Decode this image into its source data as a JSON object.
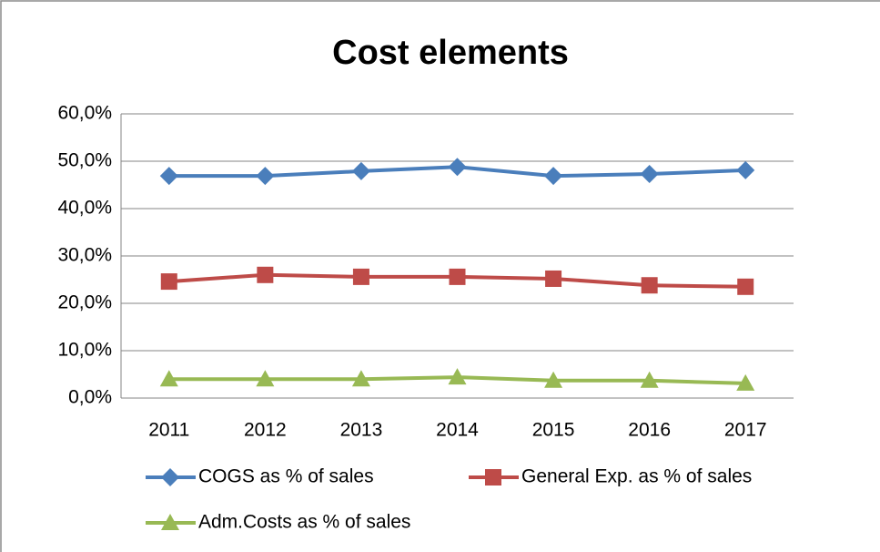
{
  "chart_data": {
    "type": "line",
    "title": "Cost elements",
    "categories": [
      "2011",
      "2012",
      "2013",
      "2014",
      "2015",
      "2016",
      "2017"
    ],
    "series": [
      {
        "name": "COGS as % of sales",
        "color": "#4a7ebb",
        "marker": "diamond",
        "values": [
          46.9,
          46.9,
          47.9,
          48.8,
          46.9,
          47.3,
          48.1
        ]
      },
      {
        "name": "General Exp. as % of sales",
        "color": "#be4b48",
        "marker": "square",
        "values": [
          24.6,
          26.0,
          25.6,
          25.6,
          25.2,
          23.8,
          23.5
        ]
      },
      {
        "name": "Adm.Costs as % of sales",
        "color": "#98b954",
        "marker": "triangle",
        "values": [
          4.0,
          4.0,
          4.0,
          4.4,
          3.7,
          3.7,
          3.1
        ]
      }
    ],
    "ylim": [
      0,
      60
    ],
    "yticks": [
      {
        "value": 0,
        "label": "0,0%"
      },
      {
        "value": 10,
        "label": "10,0%"
      },
      {
        "value": 20,
        "label": "20,0%"
      },
      {
        "value": 30,
        "label": "30,0%"
      },
      {
        "value": 40,
        "label": "40,0%"
      },
      {
        "value": 50,
        "label": "50,0%"
      },
      {
        "value": 60,
        "label": "60,0%"
      }
    ],
    "grid": true,
    "legend": "bottom"
  }
}
